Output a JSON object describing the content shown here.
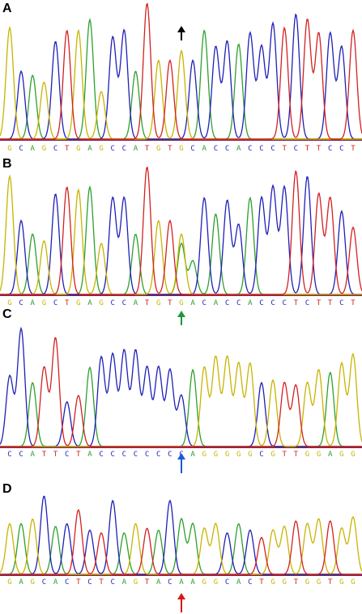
{
  "colors": {
    "A": "#2ca02c",
    "C": "#1f1fb8",
    "G": "#c8b400",
    "T": "#d42020",
    "arrow_black": "#000000",
    "arrow_green": "#1a9a3a",
    "arrow_blue": "#1a5adc",
    "arrow_red": "#d81818"
  },
  "panels": [
    {
      "label": "A",
      "sequence": "GCAGCTGAGCCATGTGCACCACCCTCTTCCT",
      "peaks": [
        0.82,
        0.5,
        0.47,
        0.42,
        0.72,
        0.8,
        0.8,
        0.88,
        0.35,
        0.75,
        0.8,
        0.5,
        1.0,
        0.58,
        0.58,
        0.65,
        0.58,
        0.8,
        0.68,
        0.72,
        0.7,
        0.78,
        0.68,
        0.85,
        0.82,
        0.92,
        0.88,
        0.78,
        0.78,
        0.68,
        0.8
      ],
      "arrow_index": 15,
      "arrow_color": "arrow_black",
      "heterozygous": null
    },
    {
      "label": "B",
      "sequence": "GCAGCTGAGCCATGTGACACCACCCTCTTCT",
      "peaks": [
        0.88,
        0.55,
        0.45,
        0.4,
        0.75,
        0.8,
        0.78,
        0.8,
        0.38,
        0.72,
        0.72,
        0.45,
        0.95,
        0.55,
        0.55,
        0.45,
        0.25,
        0.72,
        0.6,
        0.7,
        0.52,
        0.72,
        0.72,
        0.8,
        0.8,
        0.92,
        0.88,
        0.75,
        0.72,
        0.62,
        0.5
      ],
      "arrow_index": 15,
      "arrow_color": "arrow_green",
      "heterozygous": {
        "index": 15,
        "base": "A"
      }
    },
    {
      "label": "C",
      "sequence": "CCATTCTACCCCCCCCAGGGGGCGTTGGAGG",
      "peaks": [
        0.55,
        0.92,
        0.5,
        0.62,
        0.85,
        0.35,
        0.4,
        0.62,
        0.7,
        0.72,
        0.75,
        0.75,
        0.62,
        0.62,
        0.6,
        0.4,
        0.6,
        0.62,
        0.7,
        0.7,
        0.65,
        0.65,
        0.5,
        0.52,
        0.5,
        0.48,
        0.5,
        0.6,
        0.58,
        0.65,
        0.72
      ],
      "arrow_index": 15,
      "arrow_color": "arrow_blue",
      "heterozygous": null
    },
    {
      "label": "D",
      "sequence": "GAGCACTCTCAGTACAAGGCACTGGTGGTGG",
      "peaks": [
        0.55,
        0.55,
        0.6,
        0.85,
        0.52,
        0.55,
        0.7,
        0.48,
        0.45,
        0.8,
        0.45,
        0.55,
        0.5,
        0.48,
        0.8,
        0.6,
        0.55,
        0.5,
        0.55,
        0.45,
        0.55,
        0.48,
        0.4,
        0.48,
        0.52,
        0.58,
        0.55,
        0.6,
        0.58,
        0.5,
        0.62
      ],
      "arrow_index": 15,
      "arrow_color": "arrow_red",
      "heterozygous": null
    }
  ]
}
